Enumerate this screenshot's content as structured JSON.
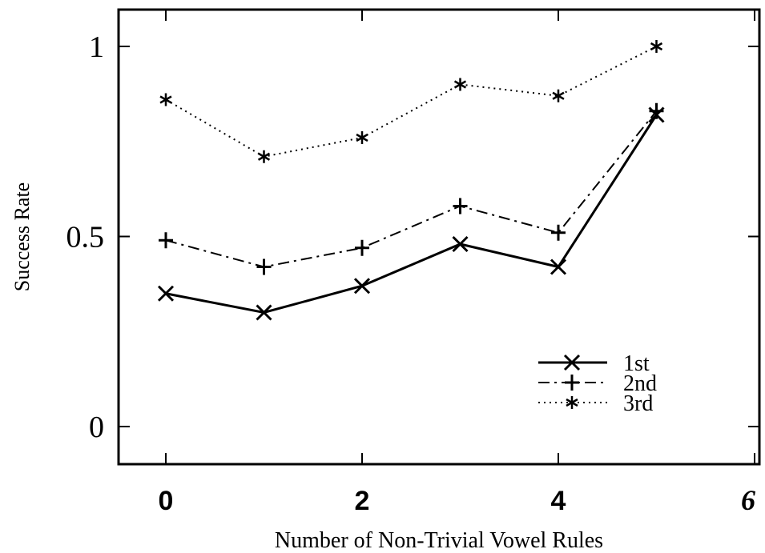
{
  "chart_data": {
    "type": "line",
    "xlabel": "Number of Non-Trivial Vowel Rules",
    "ylabel": "Success Rate",
    "xlim": [
      -0.5,
      6
    ],
    "ylim": [
      -0.1,
      1.1
    ],
    "xticks": [
      "0",
      "2",
      "4",
      "6"
    ],
    "yticks": [
      "0",
      "0.5",
      "1"
    ],
    "grid": false,
    "legend_position": "lower-right",
    "x": [
      0,
      1,
      2,
      3,
      4,
      5
    ],
    "series": [
      {
        "name": "1st",
        "marker": "x",
        "line_style": "solid",
        "values": [
          0.35,
          0.3,
          0.37,
          0.48,
          0.42,
          0.82
        ]
      },
      {
        "name": "2nd",
        "marker": "+",
        "line_style": "dashdot",
        "values": [
          0.49,
          0.42,
          0.47,
          0.58,
          0.51,
          0.83
        ]
      },
      {
        "name": "3rd",
        "marker": "*",
        "line_style": "dotted",
        "values": [
          0.86,
          0.71,
          0.76,
          0.9,
          0.87,
          1.0
        ]
      }
    ]
  }
}
